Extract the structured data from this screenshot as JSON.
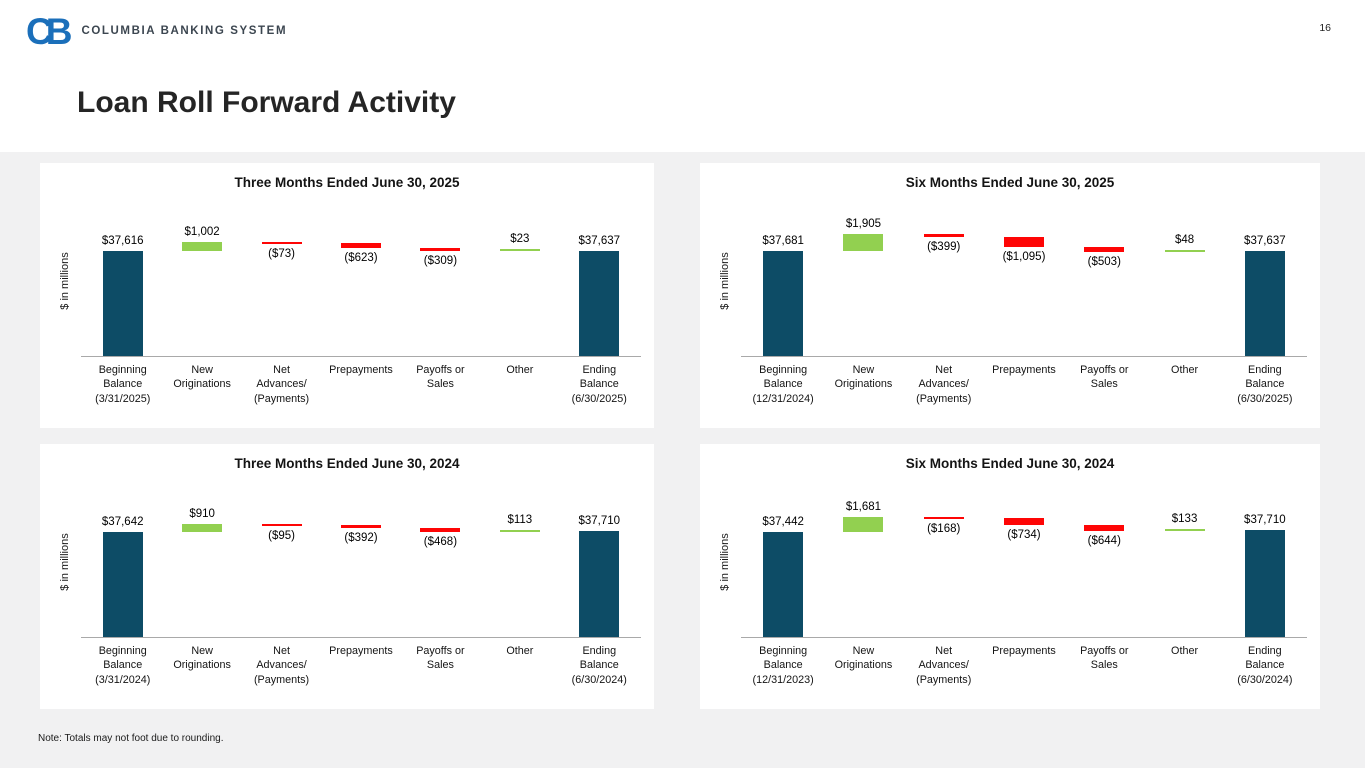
{
  "logo": {
    "monogram": "CB",
    "company": "COLUMBIA BANKING SYSTEM"
  },
  "page_number": "16",
  "title": "Loan Roll Forward Activity",
  "note": "Note: Totals may not foot due to rounding.",
  "colors": {
    "navy": "#0d4c66",
    "green": "#92d050",
    "red": "#fe0505",
    "axis": "#a9a9a9",
    "logo_blue": "#1b6fba",
    "background": "#f1f1f2",
    "card": "#ffffff"
  },
  "chart_data": [
    {
      "type": "bar",
      "subtype": "waterfall",
      "title": "Three Months Ended June 30, 2025",
      "ylabel": "$ in millions",
      "categories": [
        "Beginning\nBalance\n(3/31/2025)",
        "New\nOriginations",
        "Net\nAdvances/\n(Payments)",
        "Prepayments",
        "Payoffs or\nSales",
        "Other",
        "Ending\nBalance\n(6/30/2025)"
      ],
      "values": [
        37616,
        1002,
        -73,
        -623,
        -309,
        23,
        37637
      ],
      "value_labels": [
        "$37,616",
        "$1,002",
        "($73)",
        "($623)",
        "($309)",
        "$23",
        "$37,637"
      ],
      "bar_types": [
        "total",
        "delta",
        "delta",
        "delta",
        "delta",
        "delta",
        "total"
      ]
    },
    {
      "type": "bar",
      "subtype": "waterfall",
      "title": "Six Months Ended June 30, 2025",
      "ylabel": "$ in millions",
      "categories": [
        "Beginning\nBalance\n(12/31/2024)",
        "New\nOriginations",
        "Net\nAdvances/\n(Payments)",
        "Prepayments",
        "Payoffs or\nSales",
        "Other",
        "Ending\nBalance\n(6/30/2025)"
      ],
      "values": [
        37681,
        1905,
        -399,
        -1095,
        -503,
        48,
        37637
      ],
      "value_labels": [
        "$37,681",
        "$1,905",
        "($399)",
        "($1,095)",
        "($503)",
        "$48",
        "$37,637"
      ],
      "bar_types": [
        "total",
        "delta",
        "delta",
        "delta",
        "delta",
        "delta",
        "total"
      ]
    },
    {
      "type": "bar",
      "subtype": "waterfall",
      "title": "Three Months Ended June 30, 2024",
      "ylabel": "$ in millions",
      "categories": [
        "Beginning\nBalance\n(3/31/2024)",
        "New\nOriginations",
        "Net\nAdvances/\n(Payments)",
        "Prepayments",
        "Payoffs or\nSales",
        "Other",
        "Ending\nBalance\n(6/30/2024)"
      ],
      "values": [
        37642,
        910,
        -95,
        -392,
        -468,
        113,
        37710
      ],
      "value_labels": [
        "$37,642",
        "$910",
        "($95)",
        "($392)",
        "($468)",
        "$113",
        "$37,710"
      ],
      "bar_types": [
        "total",
        "delta",
        "delta",
        "delta",
        "delta",
        "delta",
        "total"
      ]
    },
    {
      "type": "bar",
      "subtype": "waterfall",
      "title": "Six Months Ended June 30, 2024",
      "ylabel": "$ in millions",
      "categories": [
        "Beginning\nBalance\n(12/31/2023)",
        "New\nOriginations",
        "Net\nAdvances/\n(Payments)",
        "Prepayments",
        "Payoffs or\nSales",
        "Other",
        "Ending\nBalance\n(6/30/2024)"
      ],
      "values": [
        37442,
        1681,
        -168,
        -734,
        -644,
        133,
        37710
      ],
      "value_labels": [
        "$37,442",
        "$1,681",
        "($168)",
        "($734)",
        "($644)",
        "$133",
        "$37,710"
      ],
      "bar_types": [
        "total",
        "delta",
        "delta",
        "delta",
        "delta",
        "delta",
        "total"
      ]
    }
  ]
}
